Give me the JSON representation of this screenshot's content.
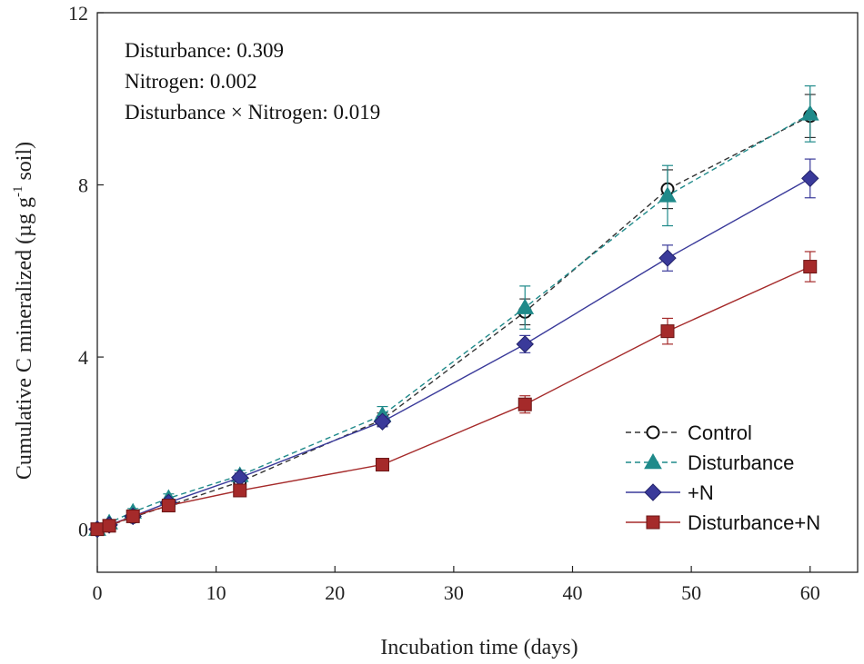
{
  "chart_data": {
    "type": "line",
    "xlabel": "Incubation time (days)",
    "ylabel_main": "Cumulative C mineralized (µg g",
    "ylabel_sup": "-1",
    "ylabel_tail": " soil)",
    "xlim": [
      0,
      64
    ],
    "ylim": [
      -1,
      12
    ],
    "xticks": [
      0,
      10,
      20,
      30,
      40,
      50,
      60
    ],
    "yticks": [
      0,
      4,
      8,
      12
    ],
    "x": [
      0,
      1,
      3,
      6,
      12,
      24,
      36,
      48,
      60
    ],
    "annotations": [
      "Disturbance: 0.309",
      "Nitrogen: 0.002",
      "Disturbance × Nitrogen: 0.019"
    ],
    "legend_position": "bottom-right",
    "series": [
      {
        "name": "Control",
        "color": "#333333",
        "dash": true,
        "marker": "open-circle",
        "values": [
          0,
          0.08,
          0.28,
          0.55,
          1.1,
          2.55,
          5.05,
          7.9,
          9.6
        ],
        "errors": [
          0,
          0.05,
          0.06,
          0.08,
          0.1,
          0.15,
          0.3,
          0.45,
          0.5
        ]
      },
      {
        "name": "Disturbance",
        "color": "#1f8a8a",
        "dash": true,
        "marker": "triangle",
        "values": [
          0,
          0.15,
          0.4,
          0.72,
          1.25,
          2.65,
          5.15,
          7.75,
          9.65
        ],
        "errors": [
          0,
          0.06,
          0.08,
          0.1,
          0.12,
          0.2,
          0.5,
          0.7,
          0.65
        ]
      },
      {
        "name": "+N",
        "color": "#3a3a9a",
        "dash": false,
        "marker": "diamond",
        "values": [
          0,
          0.1,
          0.3,
          0.62,
          1.2,
          2.5,
          4.3,
          6.3,
          8.15
        ],
        "errors": [
          0,
          0.05,
          0.06,
          0.08,
          0.1,
          0.12,
          0.2,
          0.3,
          0.45
        ]
      },
      {
        "name": "Disturbance+N",
        "color": "#a52a2a",
        "dash": false,
        "marker": "square",
        "values": [
          0,
          0.08,
          0.3,
          0.55,
          0.9,
          1.5,
          2.9,
          4.6,
          6.1
        ],
        "errors": [
          0,
          0.04,
          0.05,
          0.06,
          0.08,
          0.1,
          0.2,
          0.3,
          0.35
        ]
      }
    ]
  }
}
